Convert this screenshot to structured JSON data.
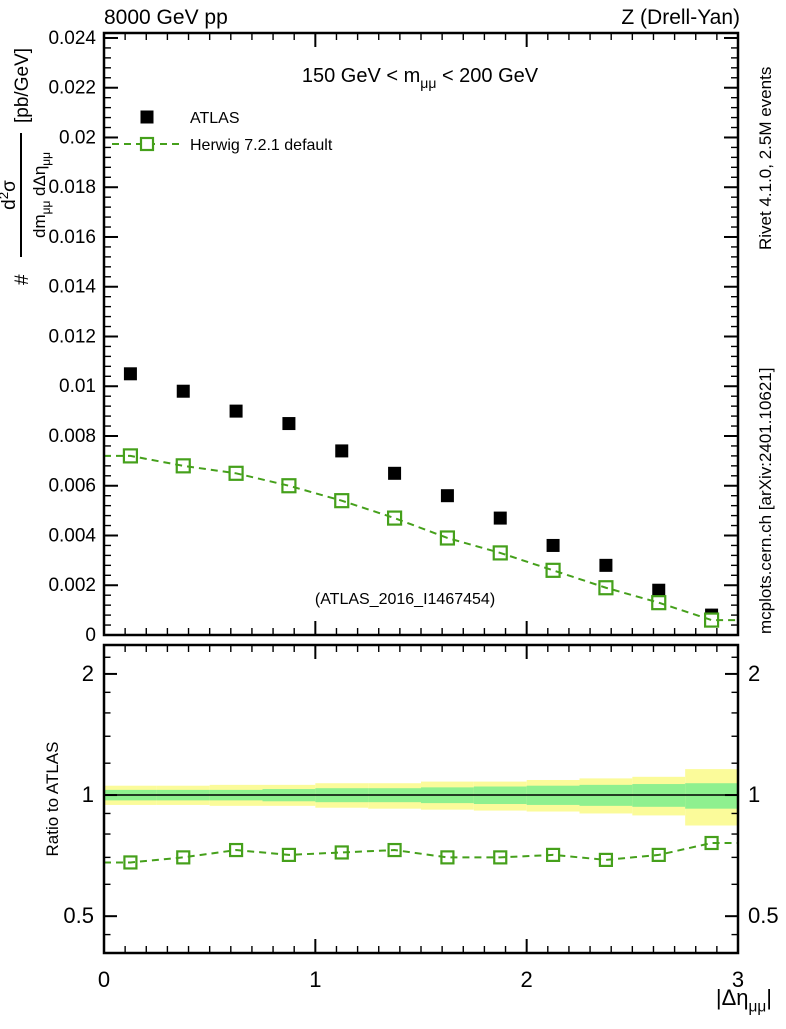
{
  "header": {
    "left": "8000 GeV pp",
    "right": "Z (Drell-Yan)"
  },
  "panel_title": {
    "text": "150 GeV < m_mumu < 200 GeV",
    "parts": [
      {
        "t": "150 GeV < m"
      },
      {
        "t": "μμ",
        "sub": true
      },
      {
        "t": " < 200 GeV"
      }
    ]
  },
  "legend": {
    "entries": [
      {
        "label": "ATLAS",
        "marker": "filled-square",
        "color": "#000000"
      },
      {
        "label": "Herwig 7.2.1 default",
        "marker": "open-square-dashed-line",
        "color": "#45a01b"
      }
    ]
  },
  "watermark": "(ATLAS_2016_I1467454)",
  "side_notes": {
    "top": "Rivet 4.1.0,  2.5M events",
    "bottom": "mcplots.cern.ch [arXiv:2401.10621]"
  },
  "colors": {
    "mc_green": "#45a01b",
    "band_yellow": "#fbfb9a",
    "band_green": "#8ff08f",
    "data_black": "#000000",
    "note_gray": "#8f8f8f",
    "watermark_gray": "#b3b3b3"
  },
  "chart_data": {
    "type": "scatter",
    "title": "150 GeV < m_mumu < 200 GeV",
    "xlabel": "|Δη_mumu|",
    "ylabel": "# d2sigma / dm_mumu dDeltaeta_mumu [pb/GeV]",
    "ratio_ylabel": "Ratio to ATLAS",
    "x_bin_width": 0.25,
    "x": [
      0.125,
      0.375,
      0.625,
      0.875,
      1.125,
      1.375,
      1.625,
      1.875,
      2.125,
      2.375,
      2.625,
      2.875
    ],
    "series": [
      {
        "name": "ATLAS",
        "marker": "filled-square",
        "color": "#000000",
        "values": [
          0.0105,
          0.0098,
          0.009,
          0.0085,
          0.0074,
          0.0065,
          0.0056,
          0.0047,
          0.0036,
          0.0028,
          0.0018,
          0.0008
        ],
        "errors": [
          0.00015,
          0.00015,
          0.00014,
          0.00013,
          0.00012,
          0.00012,
          0.00011,
          0.00011,
          0.0001,
          0.0001,
          0.0001,
          0.00025
        ]
      },
      {
        "name": "Herwig 7.2.1 default",
        "marker": "open-square",
        "line": "dashed",
        "color": "#45a01b",
        "values": [
          0.0072,
          0.0068,
          0.0065,
          0.006,
          0.0054,
          0.0047,
          0.0039,
          0.0033,
          0.0026,
          0.0019,
          0.0013,
          0.0006
        ]
      }
    ],
    "ratio": {
      "reference": "ATLAS",
      "values": [
        0.68,
        0.7,
        0.73,
        0.71,
        0.72,
        0.73,
        0.7,
        0.7,
        0.71,
        0.69,
        0.71,
        0.76
      ],
      "bands": {
        "yellow_hi": [
          1.055,
          1.055,
          1.06,
          1.06,
          1.07,
          1.07,
          1.08,
          1.08,
          1.09,
          1.1,
          1.11,
          1.16
        ],
        "yellow_lo": [
          0.945,
          0.945,
          0.94,
          0.94,
          0.93,
          0.925,
          0.92,
          0.915,
          0.91,
          0.9,
          0.89,
          0.84
        ],
        "green_hi": [
          1.03,
          1.03,
          1.03,
          1.035,
          1.04,
          1.04,
          1.045,
          1.05,
          1.055,
          1.06,
          1.065,
          1.07
        ],
        "green_lo": [
          0.97,
          0.97,
          0.97,
          0.965,
          0.96,
          0.96,
          0.955,
          0.95,
          0.945,
          0.94,
          0.935,
          0.925
        ]
      }
    },
    "axes": {
      "x": {
        "min": 0,
        "max": 3,
        "majors": [
          0,
          1,
          2,
          3
        ],
        "minor_step": 0.1,
        "labels": [
          "0",
          "1",
          "2",
          "3"
        ]
      },
      "y_main": {
        "min": 0,
        "max": 0.0242,
        "major_step": 0.002,
        "minor_step": 0.0004
      },
      "y_ratio": {
        "scale": "log",
        "min": 0.405,
        "max": 2.36,
        "majors": [
          0.5,
          1,
          2
        ],
        "labels": [
          "0.5",
          "1",
          "2"
        ],
        "minors": [
          0.45,
          0.6,
          0.7,
          0.8,
          0.9,
          1.2,
          1.4,
          1.6,
          1.8,
          2.2
        ]
      }
    },
    "ylabel_fraction": {
      "prefix": "#",
      "numerator_parts": [
        {
          "t": "d"
        },
        {
          "t": "2",
          "sup": true
        },
        {
          "t": "σ"
        }
      ],
      "denominator_parts": [
        {
          "t": "dm"
        },
        {
          "t": "μμ",
          "sub": true
        },
        {
          "t": " dΔη"
        },
        {
          "t": "μμ",
          "sub": true
        }
      ],
      "suffix": "[pb/GeV]"
    },
    "xlabel_parts": [
      {
        "t": "|Δη"
      },
      {
        "t": "μμ",
        "sub": true
      },
      {
        "t": "|"
      }
    ]
  }
}
